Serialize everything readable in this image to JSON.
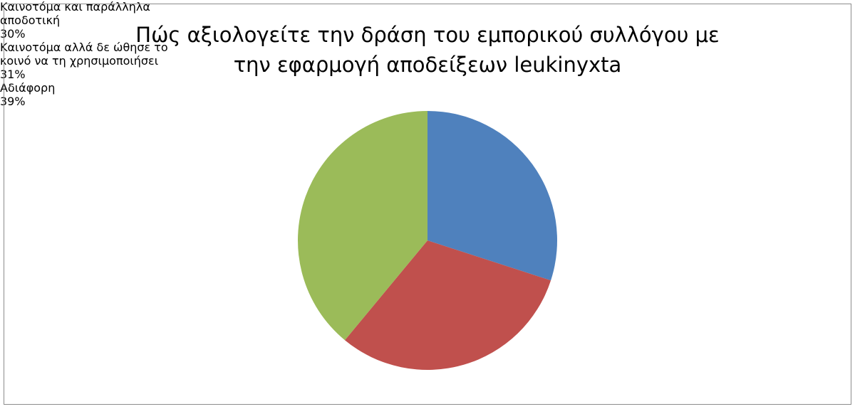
{
  "chart_data": {
    "type": "pie",
    "title": "Πώς αξιολογείτε την δράση του εμπορικού συλλόγου με την εφαρμογή αποδείξεων leukinyxta",
    "categories": [
      "Καινοτόμα και παράλληλα αποδοτική",
      "Καινοτόμα αλλά δε ώθησε το κοινό να τη χρησιμοποιήσει",
      "Αδιάφορη"
    ],
    "values": [
      30,
      31,
      39
    ],
    "value_labels": [
      "30%",
      "31%",
      "39%"
    ],
    "colors": [
      "#4f81bd",
      "#c0504d",
      "#9bbb59"
    ]
  }
}
